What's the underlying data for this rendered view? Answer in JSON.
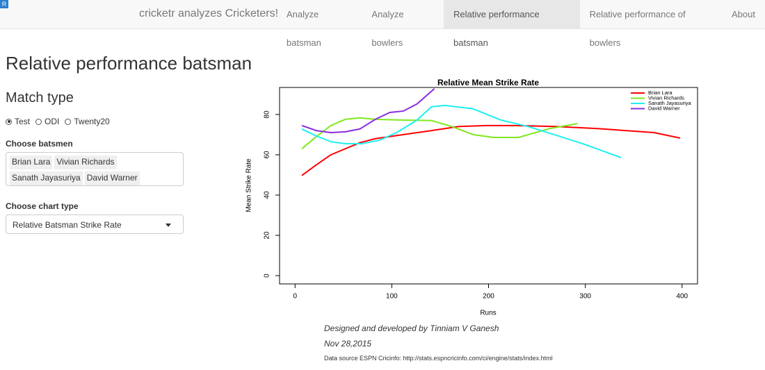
{
  "navbar": {
    "logo": "R",
    "brand": "cricketr analyzes Cricketers!",
    "items": [
      "Analyze batsman",
      "Analyze bowlers",
      "Relative performance batsman",
      "Relative performance of bowlers",
      "About"
    ],
    "active": 2
  },
  "page": {
    "title": "Relative performance batsman"
  },
  "sidebar": {
    "match_type_label": "Match type",
    "match_types": [
      "Test",
      "ODI",
      "Twenty20"
    ],
    "selected_match_type": 0,
    "batsmen_label": "Choose batsmen",
    "batsmen": [
      "Brian Lara",
      "Vivian Richards",
      "Sanath Jayasuriya",
      "David Warner"
    ],
    "chart_type_label": "Choose chart type",
    "chart_type": "Relative Batsman Strike Rate"
  },
  "chart_data": {
    "type": "line",
    "title": "Relative Mean Strike Rate",
    "x_label": "Runs",
    "y_label": "Mean Strike Rate",
    "xlim": [
      -16,
      416
    ],
    "ylim": [
      -4.1,
      93.4
    ],
    "xticks": [
      0,
      100,
      200,
      300,
      400
    ],
    "yticks": [
      0,
      20,
      40,
      60,
      80
    ],
    "legend": "topright",
    "series": [
      {
        "name": "Brian Lara",
        "color": "#ff0000",
        "x": [
          7,
          22,
          37,
          52,
          67,
          83,
          112,
          141,
          169,
          198,
          227,
          270,
          313,
          371,
          398
        ],
        "values": [
          49.7,
          55,
          60,
          63,
          66,
          68,
          70,
          72,
          74,
          74.5,
          74.5,
          74,
          73,
          71,
          68.3
        ]
      },
      {
        "name": "Vivian Richards",
        "color": "#7fe81c",
        "x": [
          7,
          22,
          37,
          52,
          67,
          83,
          112,
          141,
          162,
          184,
          205,
          231,
          263,
          292
        ],
        "values": [
          63,
          69,
          74.5,
          77.6,
          78.3,
          77.6,
          77.2,
          77,
          74,
          70,
          68.6,
          68.6,
          73,
          75.5
        ]
      },
      {
        "name": "Sanath Jayasuriya",
        "color": "#1ff0f0",
        "x": [
          7,
          22,
          37,
          52,
          69,
          87,
          105,
          126,
          141,
          155,
          184,
          213,
          241,
          270,
          299,
          337
        ],
        "values": [
          72.8,
          69.3,
          66.5,
          65.5,
          65.5,
          67.2,
          71,
          77.2,
          83.8,
          84.5,
          82.8,
          77.2,
          74,
          69.7,
          65.2,
          58.6
        ]
      },
      {
        "name": "David Warner",
        "color": "#8a2be2",
        "x": [
          7,
          22,
          37,
          52,
          67,
          83,
          98,
          112,
          126,
          144
        ],
        "values": [
          74.5,
          72,
          71,
          71.4,
          72.8,
          77.6,
          81,
          81.7,
          85.2,
          92.8
        ]
      }
    ]
  },
  "footer": {
    "credit": "Designed and developed by Tinniam V Ganesh",
    "date": "Nov 28,2015",
    "source": "Data source ESPN Cricinfo: http://stats.espncricinfo.com/ci/engine/stats/index.html"
  }
}
